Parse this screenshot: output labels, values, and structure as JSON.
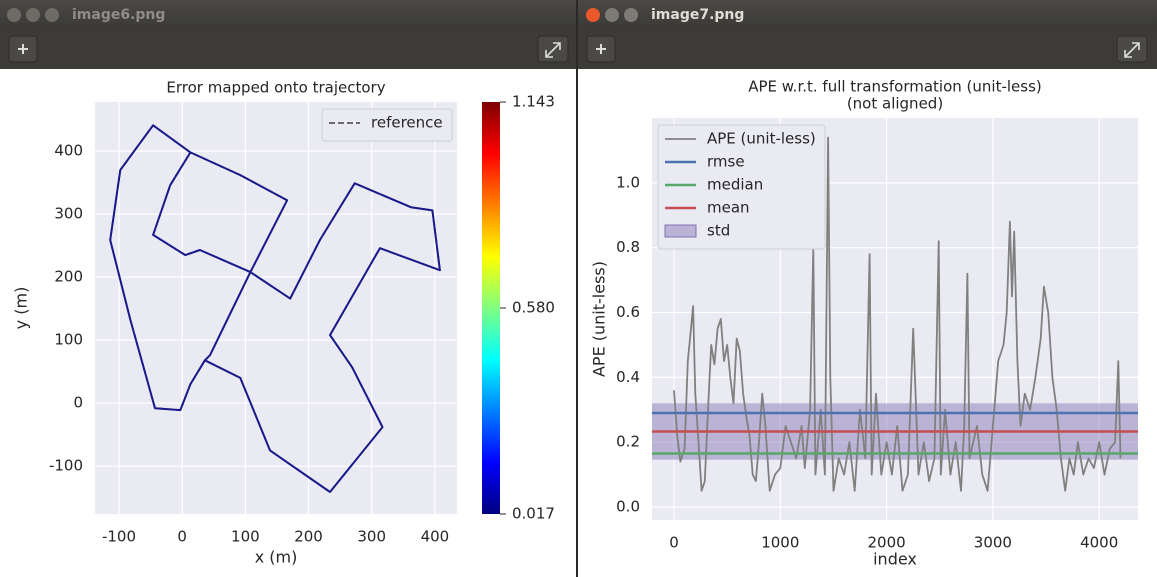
{
  "windows": [
    {
      "title": "image6.png"
    },
    {
      "title": "image7.png"
    }
  ],
  "chart_data": [
    {
      "type": "line",
      "title": "Error mapped onto trajectory",
      "xlabel": "x (m)",
      "ylabel": "y (m)",
      "xlim": [
        -138,
        435
      ],
      "xticks": [
        -100,
        0,
        100,
        200,
        300,
        400
      ],
      "ylim": [
        -176,
        478
      ],
      "yticks": [
        -100,
        0,
        100,
        200,
        300,
        400
      ],
      "grid": true,
      "legend": "upper right",
      "path_color": "#1a1a8c",
      "series": [
        {
          "name": "reference",
          "color": "#5a5a5a",
          "dash": true,
          "x": [
            36,
            13,
            -3,
            -43,
            -82,
            -114,
            -98,
            -46,
            13,
            92,
            166,
            108,
            44,
            36,
            92,
            139,
            234,
            317,
            269,
            234,
            313,
            408,
            396,
            362,
            273,
            218,
            171,
            108,
            28,
            5,
            -46,
            -19,
            13
          ],
          "values": [
            68,
            30,
            -11,
            -8,
            132,
            259,
            370,
            441,
            398,
            362,
            322,
            208,
            76,
            68,
            40,
            -75,
            -141,
            -38,
            57,
            108,
            246,
            211,
            306,
            311,
            349,
            259,
            166,
            208,
            243,
            235,
            267,
            346,
            398
          ]
        }
      ],
      "colorbar": {
        "colormap": "jet",
        "clim": [
          0.017,
          1.143
        ],
        "ticks": [
          0.017,
          {
            "value": 0.58,
            "label": "0.580"
          },
          1.143
        ]
      }
    },
    {
      "type": "line",
      "title": "APE w.r.t. full transformation (unit-less)",
      "subtitle": "(not aligned)",
      "xlabel": "index",
      "ylabel": "APE (unit-less)",
      "xlim": [
        -207,
        4365
      ],
      "xticks": [
        0,
        1000,
        2000,
        3000,
        4000
      ],
      "ylim": [
        -0.04,
        1.2
      ],
      "yticks": [
        {
          "value": 0,
          "label": "0.0"
        },
        0.2,
        0.4,
        0.6,
        0.8,
        {
          "value": 1,
          "label": "1.0"
        }
      ],
      "grid": true,
      "legend": "upper left",
      "series": [
        {
          "name": "APE (unit-less)",
          "color": "#808080",
          "x": [
            0,
            30,
            60,
            100,
            130,
            160,
            180,
            200,
            230,
            260,
            290,
            320,
            350,
            380,
            410,
            440,
            470,
            500,
            530,
            560,
            590,
            620,
            650,
            680,
            710,
            740,
            770,
            800,
            830,
            860,
            900,
            950,
            1000,
            1050,
            1100,
            1150,
            1200,
            1230,
            1280,
            1310,
            1330,
            1380,
            1420,
            1450,
            1470,
            1500,
            1550,
            1600,
            1650,
            1700,
            1750,
            1800,
            1840,
            1860,
            1900,
            1950,
            2000,
            2050,
            2100,
            2150,
            2200,
            2250,
            2300,
            2350,
            2400,
            2450,
            2490,
            2510,
            2550,
            2600,
            2650,
            2700,
            2730,
            2760,
            2780,
            2850,
            2900,
            2950,
            3000,
            3050,
            3100,
            3130,
            3160,
            3180,
            3200,
            3230,
            3260,
            3300,
            3350,
            3400,
            3450,
            3480,
            3520,
            3560,
            3600,
            3640,
            3680,
            3720,
            3760,
            3800,
            3850,
            3900,
            3950,
            4000,
            4050,
            4100,
            4150,
            4180,
            4200
          ],
          "values": [
            0.36,
            0.22,
            0.14,
            0.18,
            0.45,
            0.55,
            0.62,
            0.35,
            0.2,
            0.05,
            0.08,
            0.3,
            0.5,
            0.44,
            0.55,
            0.58,
            0.45,
            0.5,
            0.4,
            0.32,
            0.52,
            0.48,
            0.35,
            0.28,
            0.22,
            0.1,
            0.08,
            0.2,
            0.35,
            0.25,
            0.05,
            0.1,
            0.12,
            0.25,
            0.2,
            0.15,
            0.25,
            0.12,
            0.3,
            0.8,
            0.1,
            0.3,
            0.1,
            1.14,
            0.4,
            0.05,
            0.15,
            0.1,
            0.2,
            0.05,
            0.3,
            0.15,
            0.78,
            0.1,
            0.35,
            0.1,
            0.2,
            0.1,
            0.25,
            0.05,
            0.1,
            0.55,
            0.1,
            0.2,
            0.08,
            0.15,
            0.82,
            0.1,
            0.3,
            0.1,
            0.2,
            0.05,
            0.25,
            0.72,
            0.15,
            0.25,
            0.1,
            0.05,
            0.25,
            0.45,
            0.5,
            0.6,
            0.88,
            0.65,
            0.85,
            0.45,
            0.25,
            0.35,
            0.3,
            0.4,
            0.52,
            0.68,
            0.6,
            0.4,
            0.3,
            0.15,
            0.05,
            0.15,
            0.1,
            0.2,
            0.1,
            0.15,
            0.12,
            0.2,
            0.1,
            0.18,
            0.2,
            0.45,
            0.15
          ]
        }
      ],
      "hlines": [
        {
          "name": "rmse",
          "color": "#4c72b0",
          "value": 0.29
        },
        {
          "name": "median",
          "color": "#55a868",
          "value": 0.165
        },
        {
          "name": "mean",
          "color": "#c44e52",
          "value": 0.233
        }
      ],
      "band": {
        "name": "std",
        "color": "#8172b2",
        "value": 0.087
      }
    }
  ]
}
